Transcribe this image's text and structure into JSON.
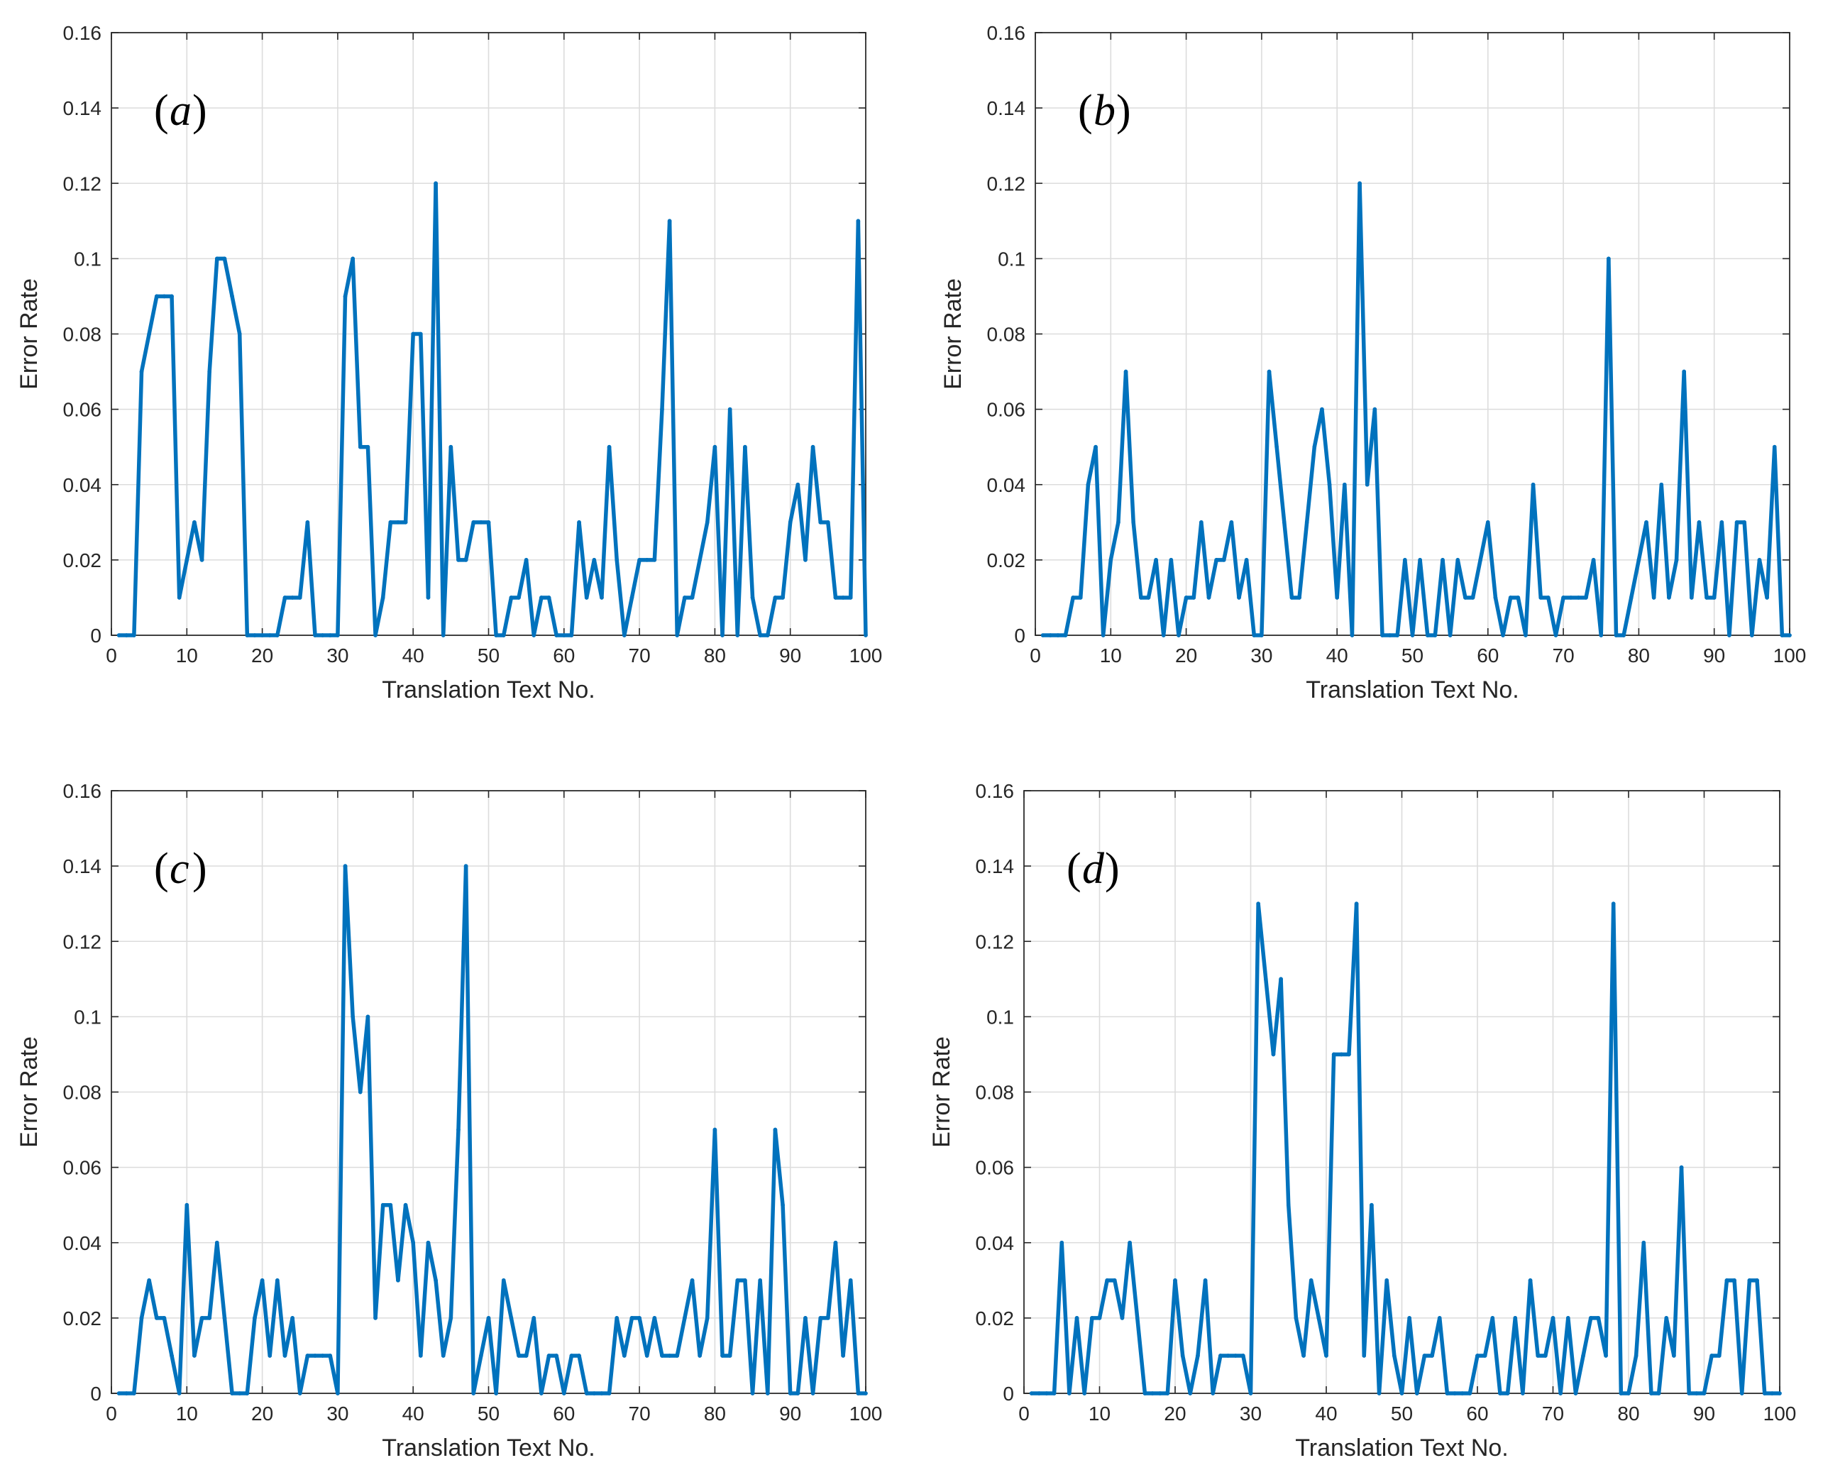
{
  "chart_data": [
    {
      "id": "a",
      "type": "line",
      "panel_label": "a",
      "xlabel": "Translation Text No.",
      "ylabel": "Error Rate",
      "xlim": [
        0,
        100
      ],
      "ylim": [
        0,
        0.16
      ],
      "xticks": [
        "0",
        "10",
        "20",
        "30",
        "40",
        "50",
        "60",
        "70",
        "80",
        "90",
        "100"
      ],
      "yticks": [
        "0",
        "0.02",
        "0.04",
        "0.06",
        "0.08",
        "0.1",
        "0.12",
        "0.14",
        "0.16"
      ],
      "grid": true,
      "line_color": "#0072bd",
      "x": [
        1,
        2,
        3,
        4,
        5,
        6,
        7,
        8,
        9,
        10,
        11,
        12,
        13,
        14,
        15,
        16,
        17,
        18,
        19,
        20,
        21,
        22,
        23,
        24,
        25,
        26,
        27,
        28,
        29,
        30,
        31,
        32,
        33,
        34,
        35,
        36,
        37,
        38,
        39,
        40,
        41,
        42,
        43,
        44,
        45,
        46,
        47,
        48,
        49,
        50,
        51,
        52,
        53,
        54,
        55,
        56,
        57,
        58,
        59,
        60,
        61,
        62,
        63,
        64,
        65,
        66,
        67,
        68,
        69,
        70,
        71,
        72,
        73,
        74,
        75,
        76,
        77,
        78,
        79,
        80,
        81,
        82,
        83,
        84,
        85,
        86,
        87,
        88,
        89,
        90,
        91,
        92,
        93,
        94,
        95,
        96,
        97,
        98,
        99,
        100
      ],
      "values": [
        0,
        0,
        0,
        0.07,
        0.08,
        0.09,
        0.09,
        0.09,
        0.01,
        0.02,
        0.03,
        0.02,
        0.07,
        0.1,
        0.1,
        0.09,
        0.08,
        0,
        0,
        0,
        0,
        0,
        0.01,
        0.01,
        0.01,
        0.03,
        0,
        0,
        0,
        0,
        0.09,
        0.1,
        0.05,
        0.05,
        0,
        0.01,
        0.03,
        0.03,
        0.03,
        0.08,
        0.08,
        0.01,
        0.12,
        0,
        0.05,
        0.02,
        0.02,
        0.03,
        0.03,
        0.03,
        0,
        0,
        0.01,
        0.01,
        0.02,
        0,
        0.01,
        0.01,
        0,
        0,
        0,
        0.03,
        0.01,
        0.02,
        0.01,
        0.05,
        0.02,
        0,
        0.01,
        0.02,
        0.02,
        0.02,
        0.06,
        0.11,
        0,
        0.01,
        0.01,
        0.02,
        0.03,
        0.05,
        0,
        0.06,
        0,
        0.05,
        0.01,
        0,
        0,
        0.01,
        0.01,
        0.03,
        0.04,
        0.02,
        0.05,
        0.03,
        0.03,
        0.01,
        0.01,
        0.01,
        0.11,
        0
      ]
    },
    {
      "id": "b",
      "type": "line",
      "panel_label": "b",
      "xlabel": "Translation Text No.",
      "ylabel": "Error Rate",
      "xlim": [
        0,
        100
      ],
      "ylim": [
        0,
        0.16
      ],
      "xticks": [
        "0",
        "10",
        "20",
        "30",
        "40",
        "50",
        "60",
        "70",
        "80",
        "90",
        "100"
      ],
      "yticks": [
        "0",
        "0.02",
        "0.04",
        "0.06",
        "0.08",
        "0.1",
        "0.12",
        "0.14",
        "0.16"
      ],
      "grid": true,
      "line_color": "#0072bd",
      "x": [
        1,
        2,
        3,
        4,
        5,
        6,
        7,
        8,
        9,
        10,
        11,
        12,
        13,
        14,
        15,
        16,
        17,
        18,
        19,
        20,
        21,
        22,
        23,
        24,
        25,
        26,
        27,
        28,
        29,
        30,
        31,
        32,
        33,
        34,
        35,
        36,
        37,
        38,
        39,
        40,
        41,
        42,
        43,
        44,
        45,
        46,
        47,
        48,
        49,
        50,
        51,
        52,
        53,
        54,
        55,
        56,
        57,
        58,
        59,
        60,
        61,
        62,
        63,
        64,
        65,
        66,
        67,
        68,
        69,
        70,
        71,
        72,
        73,
        74,
        75,
        76,
        77,
        78,
        79,
        80,
        81,
        82,
        83,
        84,
        85,
        86,
        87,
        88,
        89,
        90,
        91,
        92,
        93,
        94,
        95,
        96,
        97,
        98,
        99,
        100
      ],
      "values": [
        0,
        0,
        0,
        0,
        0.01,
        0.01,
        0.04,
        0.05,
        0,
        0.02,
        0.03,
        0.07,
        0.03,
        0.01,
        0.01,
        0.02,
        0,
        0.02,
        0,
        0.01,
        0.01,
        0.03,
        0.01,
        0.02,
        0.02,
        0.03,
        0.01,
        0.02,
        0,
        0,
        0.07,
        0.05,
        0.03,
        0.01,
        0.01,
        0.03,
        0.05,
        0.06,
        0.04,
        0.01,
        0.04,
        0,
        0.12,
        0.04,
        0.06,
        0,
        0,
        0,
        0.02,
        0,
        0.02,
        0,
        0,
        0.02,
        0,
        0.02,
        0.01,
        0.01,
        0.02,
        0.03,
        0.01,
        0,
        0.01,
        0.01,
        0,
        0.04,
        0.01,
        0.01,
        0,
        0.01,
        0.01,
        0.01,
        0.01,
        0.02,
        0,
        0.1,
        0,
        0,
        0.01,
        0.02,
        0.03,
        0.01,
        0.04,
        0.01,
        0.02,
        0.07,
        0.01,
        0.03,
        0.01,
        0.01,
        0.03,
        0,
        0.03,
        0.03,
        0,
        0.02,
        0.01,
        0.05,
        0,
        0
      ]
    },
    {
      "id": "c",
      "type": "line",
      "panel_label": "c",
      "xlabel": "Translation Text No.",
      "ylabel": "Error Rate",
      "xlim": [
        0,
        100
      ],
      "ylim": [
        0,
        0.16
      ],
      "xticks": [
        "0",
        "10",
        "20",
        "30",
        "40",
        "50",
        "60",
        "70",
        "80",
        "90",
        "100"
      ],
      "yticks": [
        "0",
        "0.02",
        "0.04",
        "0.06",
        "0.08",
        "0.1",
        "0.12",
        "0.14",
        "0.16"
      ],
      "grid": true,
      "line_color": "#0072bd",
      "x": [
        1,
        2,
        3,
        4,
        5,
        6,
        7,
        8,
        9,
        10,
        11,
        12,
        13,
        14,
        15,
        16,
        17,
        18,
        19,
        20,
        21,
        22,
        23,
        24,
        25,
        26,
        27,
        28,
        29,
        30,
        31,
        32,
        33,
        34,
        35,
        36,
        37,
        38,
        39,
        40,
        41,
        42,
        43,
        44,
        45,
        46,
        47,
        48,
        49,
        50,
        51,
        52,
        53,
        54,
        55,
        56,
        57,
        58,
        59,
        60,
        61,
        62,
        63,
        64,
        65,
        66,
        67,
        68,
        69,
        70,
        71,
        72,
        73,
        74,
        75,
        76,
        77,
        78,
        79,
        80,
        81,
        82,
        83,
        84,
        85,
        86,
        87,
        88,
        89,
        90,
        91,
        92,
        93,
        94,
        95,
        96,
        97,
        98,
        99,
        100
      ],
      "values": [
        0,
        0,
        0,
        0.02,
        0.03,
        0.02,
        0.02,
        0.01,
        0,
        0.05,
        0.01,
        0.02,
        0.02,
        0.04,
        0.02,
        0,
        0,
        0,
        0.02,
        0.03,
        0.01,
        0.03,
        0.01,
        0.02,
        0,
        0.01,
        0.01,
        0.01,
        0.01,
        0,
        0.14,
        0.1,
        0.08,
        0.1,
        0.02,
        0.05,
        0.05,
        0.03,
        0.05,
        0.04,
        0.01,
        0.04,
        0.03,
        0.01,
        0.02,
        0.07,
        0.14,
        0,
        0.01,
        0.02,
        0,
        0.03,
        0.02,
        0.01,
        0.01,
        0.02,
        0,
        0.01,
        0.01,
        0,
        0.01,
        0.01,
        0,
        0,
        0,
        0,
        0.02,
        0.01,
        0.02,
        0.02,
        0.01,
        0.02,
        0.01,
        0.01,
        0.01,
        0.02,
        0.03,
        0.01,
        0.02,
        0.07,
        0.01,
        0.01,
        0.03,
        0.03,
        0,
        0.03,
        0,
        0.07,
        0.05,
        0,
        0,
        0.02,
        0,
        0.02,
        0.02,
        0.04,
        0.01,
        0.03,
        0,
        0
      ]
    },
    {
      "id": "d",
      "type": "line",
      "panel_label": "d",
      "xlabel": "Translation Text No.",
      "ylabel": "Error Rate",
      "xlim": [
        0,
        100
      ],
      "ylim": [
        0,
        0.16
      ],
      "xticks": [
        "0",
        "10",
        "20",
        "30",
        "40",
        "50",
        "60",
        "70",
        "80",
        "90",
        "100"
      ],
      "yticks": [
        "0",
        "0.02",
        "0.04",
        "0.06",
        "0.08",
        "0.1",
        "0.12",
        "0.14",
        "0.16"
      ],
      "grid": true,
      "line_color": "#0072bd",
      "x": [
        1,
        2,
        3,
        4,
        5,
        6,
        7,
        8,
        9,
        10,
        11,
        12,
        13,
        14,
        15,
        16,
        17,
        18,
        19,
        20,
        21,
        22,
        23,
        24,
        25,
        26,
        27,
        28,
        29,
        30,
        31,
        32,
        33,
        34,
        35,
        36,
        37,
        38,
        39,
        40,
        41,
        42,
        43,
        44,
        45,
        46,
        47,
        48,
        49,
        50,
        51,
        52,
        53,
        54,
        55,
        56,
        57,
        58,
        59,
        60,
        61,
        62,
        63,
        64,
        65,
        66,
        67,
        68,
        69,
        70,
        71,
        72,
        73,
        74,
        75,
        76,
        77,
        78,
        79,
        80,
        81,
        82,
        83,
        84,
        85,
        86,
        87,
        88,
        89,
        90,
        91,
        92,
        93,
        94,
        95,
        96,
        97,
        98,
        99,
        100
      ],
      "values": [
        0,
        0,
        0,
        0,
        0.04,
        0,
        0.02,
        0,
        0.02,
        0.02,
        0.03,
        0.03,
        0.02,
        0.04,
        0.02,
        0,
        0,
        0,
        0,
        0.03,
        0.01,
        0,
        0.01,
        0.03,
        0,
        0.01,
        0.01,
        0.01,
        0.01,
        0,
        0.13,
        0.11,
        0.09,
        0.11,
        0.05,
        0.02,
        0.01,
        0.03,
        0.02,
        0.01,
        0.09,
        0.09,
        0.09,
        0.13,
        0.01,
        0.05,
        0,
        0.03,
        0.01,
        0,
        0.02,
        0,
        0.01,
        0.01,
        0.02,
        0,
        0,
        0,
        0,
        0.01,
        0.01,
        0.02,
        0,
        0,
        0.02,
        0,
        0.03,
        0.01,
        0.01,
        0.02,
        0,
        0.02,
        0,
        0.01,
        0.02,
        0.02,
        0.01,
        0.13,
        0,
        0,
        0.01,
        0.04,
        0,
        0,
        0.02,
        0.01,
        0.06,
        0,
        0,
        0,
        0.01,
        0.01,
        0.03,
        0.03,
        0,
        0.03,
        0.03,
        0,
        0,
        0
      ]
    }
  ]
}
